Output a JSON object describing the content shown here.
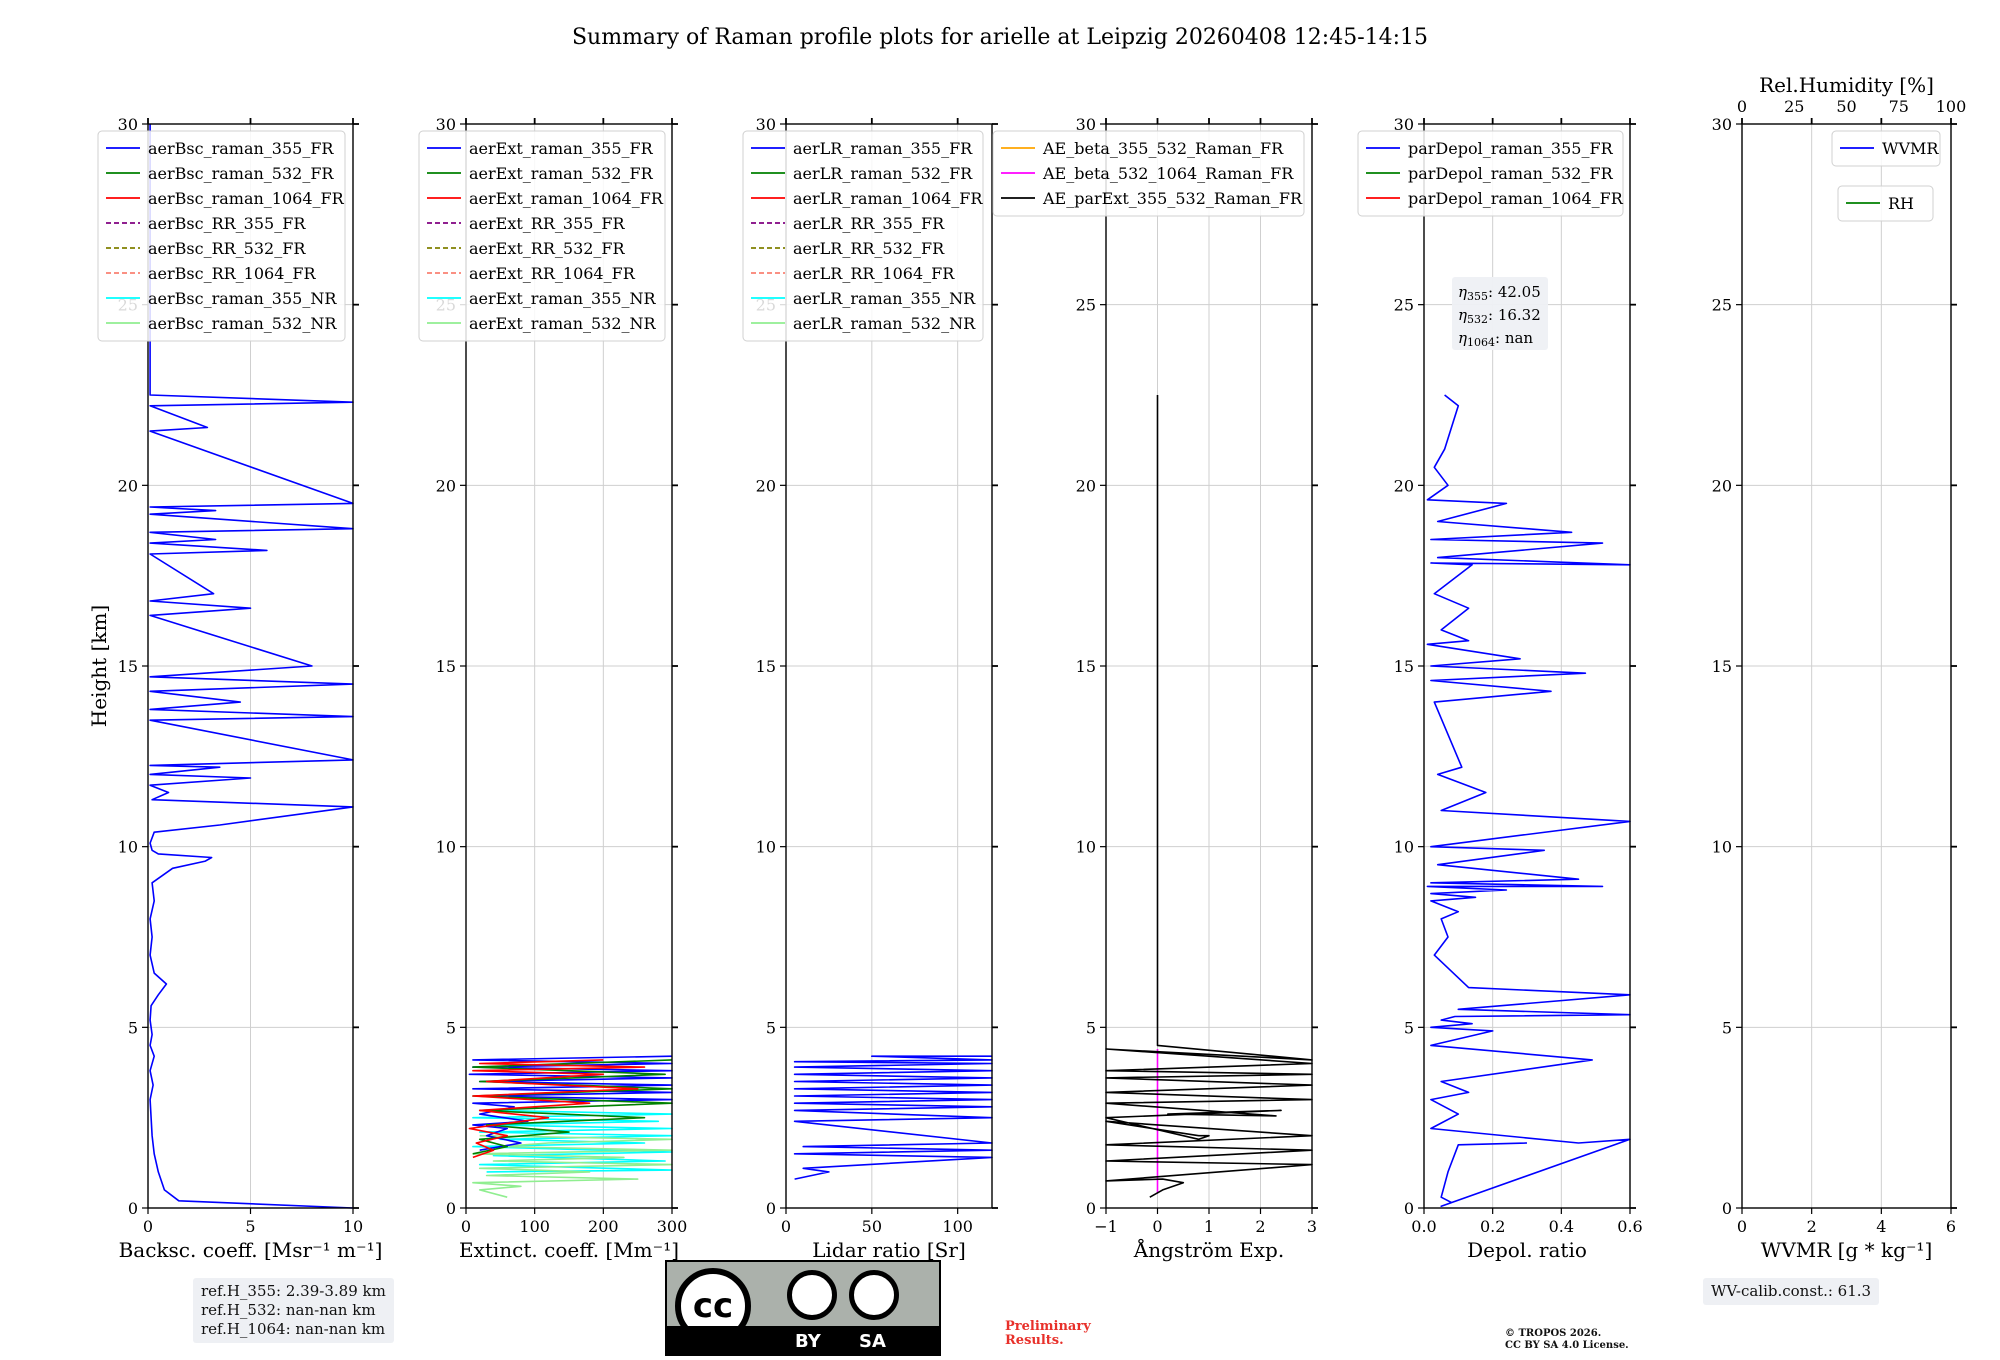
{
  "figure_title": "Summary of Raman profile plots for arielle at Leipzig 20260408 12:45-14:15",
  "colors": {
    "blue": "#0000ff",
    "green": "#008000",
    "red": "#ff0000",
    "purple": "#800080",
    "olive": "#808000",
    "salmon": "#fa8072",
    "cyan": "#00ffff",
    "lightgreen": "#90ee90",
    "orange": "#ffa500",
    "magenta": "#ff00ff",
    "black": "#000000"
  },
  "ref_heights": [
    "ref.H_355: 2.39-3.89 km",
    "ref.H_532: nan-nan km",
    "ref.H_1064: nan-nan km"
  ],
  "wv_calib": "WV-calib.const.: 61.3",
  "preliminary": [
    "Preliminary",
    "Results."
  ],
  "copyright": [
    "© TROPOS 2026.",
    "CC BY SA 4.0 License."
  ],
  "license_badge": {
    "cc": "cc",
    "by": "BY",
    "sa": "SA"
  },
  "chart_data": [
    {
      "type": "line",
      "id": "bsc",
      "ylabel": "Height [km]",
      "xlabel": "Backsc. coeff. [Msr⁻¹ m⁻¹]",
      "xlim": [
        0,
        10
      ],
      "ylim": [
        0,
        30
      ],
      "xticks": [
        0,
        5,
        10
      ],
      "yticks": [
        0,
        5,
        10,
        15,
        20,
        25,
        30
      ],
      "legend": [
        {
          "label": "aerBsc_raman_355_FR",
          "color": "blue",
          "dash": false
        },
        {
          "label": "aerBsc_raman_532_FR",
          "color": "green",
          "dash": false
        },
        {
          "label": "aerBsc_raman_1064_FR",
          "color": "red",
          "dash": false
        },
        {
          "label": "aerBsc_RR_355_FR",
          "color": "purple",
          "dash": true
        },
        {
          "label": "aerBsc_RR_532_FR",
          "color": "olive",
          "dash": true
        },
        {
          "label": "aerBsc_RR_1064_FR",
          "color": "salmon",
          "dash": true
        },
        {
          "label": "aerBsc_raman_355_NR",
          "color": "cyan",
          "dash": false
        },
        {
          "label": "aerBsc_raman_532_NR",
          "color": "lightgreen",
          "dash": false
        }
      ],
      "series": [
        {
          "name": "aerBsc_raman_355_FR",
          "color": "blue",
          "x": [
            10,
            1.5,
            0.8,
            0.5,
            0.3,
            0.2,
            0.15,
            0.1,
            0.25,
            0.1,
            0.3,
            0.1,
            0.2,
            0.1,
            0.15,
            0.5,
            0.9,
            0.3,
            0.1,
            0.2,
            0.1,
            0.3,
            0.2,
            1.2,
            2.8,
            3.1,
            0.5,
            0.2,
            0.1,
            0.3,
            3.5,
            10,
            0.2,
            1.0,
            0.1,
            5.0,
            0.1,
            3.5,
            0.1,
            10,
            0.1,
            10,
            0.1,
            4.5,
            0.1,
            10,
            0.1,
            8.0,
            0.1,
            5.0,
            0.1,
            3.2,
            0.1,
            5.8,
            0.1,
            3.3,
            0.1,
            10,
            0.1,
            3.3,
            0.1,
            10,
            0.1,
            2.9,
            0.1,
            10,
            0.1,
            0.1
          ],
          "y": [
            0.0,
            0.2,
            0.5,
            1.0,
            1.5,
            2.0,
            2.5,
            3.0,
            3.4,
            3.8,
            4.2,
            4.5,
            4.8,
            5.2,
            5.6,
            5.9,
            6.2,
            6.5,
            7.0,
            7.5,
            8.0,
            8.5,
            9.0,
            9.4,
            9.6,
            9.7,
            9.8,
            9.9,
            10.1,
            10.4,
            10.6,
            11.1,
            11.3,
            11.5,
            11.7,
            11.9,
            12.0,
            12.2,
            12.25,
            12.4,
            13.5,
            13.6,
            13.8,
            14.0,
            14.3,
            14.5,
            14.7,
            15.0,
            16.4,
            16.6,
            16.8,
            17.0,
            18.1,
            18.2,
            18.4,
            18.5,
            18.7,
            18.8,
            19.2,
            19.3,
            19.4,
            19.5,
            21.5,
            21.6,
            22.2,
            22.3,
            22.5,
            30
          ]
        }
      ]
    },
    {
      "type": "line",
      "id": "ext",
      "xlabel": "Extinct. coeff. [Mm⁻¹]",
      "xlim": [
        0,
        300
      ],
      "ylim": [
        0,
        30
      ],
      "xticks": [
        0,
        100,
        200,
        300
      ],
      "yticks": [
        0,
        5,
        10,
        15,
        20,
        25,
        30
      ],
      "legend": [
        {
          "label": "aerExt_raman_355_FR",
          "color": "blue",
          "dash": false
        },
        {
          "label": "aerExt_raman_532_FR",
          "color": "green",
          "dash": false
        },
        {
          "label": "aerExt_raman_1064_FR",
          "color": "red",
          "dash": false
        },
        {
          "label": "aerExt_RR_355_FR",
          "color": "purple",
          "dash": true
        },
        {
          "label": "aerExt_RR_532_FR",
          "color": "olive",
          "dash": true
        },
        {
          "label": "aerExt_RR_1064_FR",
          "color": "salmon",
          "dash": true
        },
        {
          "label": "aerExt_raman_355_NR",
          "color": "cyan",
          "dash": false
        },
        {
          "label": "aerExt_raman_532_NR",
          "color": "lightgreen",
          "dash": false
        }
      ],
      "series": [
        {
          "name": "aerExt_raman_355_NR",
          "color": "cyan",
          "x": [
            30,
            300,
            20,
            290,
            40,
            300,
            10,
            260,
            50,
            300,
            20,
            300,
            30,
            280,
            10,
            300,
            40
          ],
          "y": [
            1.0,
            1.05,
            1.2,
            1.3,
            1.45,
            1.55,
            1.7,
            1.8,
            1.9,
            2.0,
            2.1,
            2.2,
            2.3,
            2.4,
            2.5,
            2.6,
            2.7
          ]
        },
        {
          "name": "aerExt_raman_532_NR",
          "color": "lightgreen",
          "x": [
            60,
            20,
            80,
            10,
            250,
            30,
            180,
            20,
            300,
            40,
            230,
            10,
            300,
            50,
            120,
            300,
            20
          ],
          "y": [
            0.3,
            0.5,
            0.6,
            0.7,
            0.8,
            0.9,
            1.0,
            1.1,
            1.2,
            1.3,
            1.4,
            1.5,
            1.6,
            1.7,
            1.8,
            1.9,
            2.0
          ]
        },
        {
          "name": "aerExt_raman_355_FR",
          "color": "blue",
          "x": [
            20,
            80,
            30,
            60,
            10,
            90,
            20,
            70,
            10,
            300,
            15,
            300,
            10,
            300,
            20,
            300,
            5,
            300,
            10,
            300,
            10,
            300
          ],
          "y": [
            1.6,
            1.8,
            2.0,
            2.2,
            2.3,
            2.4,
            2.6,
            2.8,
            2.9,
            3.0,
            3.1,
            3.2,
            3.3,
            3.4,
            3.5,
            3.6,
            3.7,
            3.8,
            3.9,
            4.0,
            4.1,
            4.2
          ]
        },
        {
          "name": "aerExt_raman_532_FR",
          "color": "green",
          "x": [
            10,
            60,
            20,
            150,
            30,
            260,
            20,
            300,
            10,
            300,
            20,
            290,
            10,
            300
          ],
          "y": [
            1.5,
            1.7,
            1.9,
            2.1,
            2.3,
            2.5,
            2.7,
            2.9,
            3.1,
            3.3,
            3.5,
            3.7,
            3.9,
            4.1
          ]
        },
        {
          "name": "aerExt_raman_1064_FR",
          "color": "red",
          "x": [
            10,
            40,
            15,
            60,
            5,
            120,
            20,
            180,
            10,
            250,
            30,
            200,
            10,
            260,
            20,
            200
          ],
          "y": [
            1.4,
            1.6,
            1.8,
            2.0,
            2.2,
            2.5,
            2.7,
            2.9,
            3.1,
            3.3,
            3.5,
            3.7,
            3.8,
            3.9,
            4.0,
            4.1
          ]
        }
      ]
    },
    {
      "type": "line",
      "id": "lr",
      "xlabel": "Lidar ratio [Sr]",
      "xlim": [
        0,
        120
      ],
      "ylim": [
        0,
        30
      ],
      "xticks": [
        0,
        50,
        100
      ],
      "yticks": [
        0,
        5,
        10,
        15,
        20,
        25,
        30
      ],
      "legend": [
        {
          "label": "aerLR_raman_355_FR",
          "color": "blue",
          "dash": false
        },
        {
          "label": "aerLR_raman_532_FR",
          "color": "green",
          "dash": false
        },
        {
          "label": "aerLR_raman_1064_FR",
          "color": "red",
          "dash": false
        },
        {
          "label": "aerLR_RR_355_FR",
          "color": "purple",
          "dash": true
        },
        {
          "label": "aerLR_RR_532_FR",
          "color": "olive",
          "dash": true
        },
        {
          "label": "aerLR_RR_1064_FR",
          "color": "salmon",
          "dash": true
        },
        {
          "label": "aerLR_raman_355_NR",
          "color": "cyan",
          "dash": false
        },
        {
          "label": "aerLR_raman_532_NR",
          "color": "lightgreen",
          "dash": false
        }
      ],
      "series": [
        {
          "name": "aerLR_raman_355_FR",
          "color": "blue",
          "x": [
            5,
            25,
            10,
            120,
            5,
            120,
            10,
            120,
            5,
            120,
            5,
            120,
            5,
            120,
            5,
            120,
            5,
            120,
            5,
            120,
            5,
            120,
            5,
            120,
            5,
            120,
            50,
            120
          ],
          "y": [
            0.8,
            1.0,
            1.1,
            1.4,
            1.5,
            1.6,
            1.7,
            1.8,
            2.4,
            2.5,
            2.7,
            2.8,
            2.9,
            3.0,
            3.1,
            3.2,
            3.3,
            3.4,
            3.5,
            3.6,
            3.7,
            3.8,
            3.9,
            4.0,
            4.05,
            4.1,
            4.2,
            4.2
          ]
        }
      ]
    },
    {
      "type": "line",
      "id": "ae",
      "xlabel": "Ångström Exp.",
      "xlim": [
        -1,
        3
      ],
      "ylim": [
        0,
        30
      ],
      "xticks": [
        -1,
        0,
        1,
        2,
        3
      ],
      "yticks": [
        0,
        5,
        10,
        15,
        20,
        25,
        30
      ],
      "legend": [
        {
          "label": "AE_beta_355_532_Raman_FR",
          "color": "orange",
          "dash": false
        },
        {
          "label": "AE_beta_532_1064_Raman_FR",
          "color": "magenta",
          "dash": false
        },
        {
          "label": "AE_parExt_355_532_Raman_FR",
          "color": "black",
          "dash": false
        }
      ],
      "series": [
        {
          "name": "AE_beta_532_1064_Raman_FR",
          "color": "magenta",
          "x": [
            0,
            0
          ],
          "y": [
            0.4,
            4.4
          ]
        },
        {
          "name": "AE_parExt_355_532_Raman_FR",
          "color": "black",
          "x": [
            -0.15,
            0.1,
            0.5,
            0.1,
            -1,
            3,
            -1,
            3,
            -1,
            3,
            -1,
            0.8,
            1.0,
            0.8,
            -1,
            2.4,
            0.2,
            2.3,
            -1,
            3,
            -1,
            3,
            -1,
            3,
            -1,
            3,
            -1,
            3,
            0,
            0,
            0
          ],
          "y": [
            0.3,
            0.5,
            0.7,
            0.8,
            0.75,
            1.2,
            1.3,
            1.6,
            1.75,
            2.0,
            2.4,
            2.0,
            2.0,
            1.9,
            2.5,
            2.7,
            2.6,
            2.55,
            2.9,
            3.0,
            3.2,
            3.4,
            3.6,
            3.7,
            3.8,
            4.0,
            4.4,
            4.1,
            4.5,
            4.5,
            22.5
          ]
        }
      ]
    },
    {
      "type": "line",
      "id": "depol",
      "xlabel": "Depol. ratio",
      "xlim": [
        0,
        0.6
      ],
      "ylim": [
        0,
        30
      ],
      "xticks": [
        0.0,
        0.2,
        0.4,
        0.6
      ],
      "xtick_labels": [
        "0.0",
        "0.2",
        "0.4",
        "0.6"
      ],
      "yticks": [
        0,
        5,
        10,
        15,
        20,
        25,
        30
      ],
      "legend": [
        {
          "label": "parDepol_raman_355_FR",
          "color": "blue",
          "dash": false
        },
        {
          "label": "parDepol_raman_532_FR",
          "color": "green",
          "dash": false
        },
        {
          "label": "parDepol_raman_1064_FR",
          "color": "red",
          "dash": false
        }
      ],
      "annotation": [
        {
          "sym": "η",
          "sub": "355",
          "val": ": 42.05"
        },
        {
          "sym": "η",
          "sub": "532",
          "val": ": 16.32"
        },
        {
          "sym": "η",
          "sub": "1064",
          "val": ": nan"
        }
      ],
      "series": [
        {
          "name": "parDepol_raman_355_FR",
          "color": "blue",
          "x": [
            0.3,
            0.1,
            0.07,
            0.05,
            0.08,
            0.05,
            0.6,
            0.45,
            0.02,
            0.1,
            0.02,
            0.13,
            0.05,
            0.49,
            0.02,
            0.2,
            0.02,
            0.14,
            0.05,
            0.09,
            0.6,
            0.1,
            0.6,
            0.13,
            0.03,
            0.07,
            0.05,
            0.1,
            0.02,
            0.15,
            0.02,
            0.24,
            0.01,
            0.52,
            0.02,
            0.45,
            0.04,
            0.35,
            0.02,
            0.6,
            0.05,
            0.18,
            0.04,
            0.11,
            0.03,
            0.37,
            0.02,
            0.47,
            0.02,
            0.28,
            0.01,
            0.13,
            0.05,
            0.13,
            0.03,
            0.14,
            0.02,
            0.6,
            0.04,
            0.52,
            0.02,
            0.43,
            0.04,
            0.24,
            0.01,
            0.07,
            0.03,
            0.06,
            0.1,
            0.06
          ],
          "y": [
            1.8,
            1.75,
            1.0,
            0.3,
            0.15,
            0.05,
            1.9,
            1.8,
            2.2,
            2.6,
            3.0,
            3.2,
            3.5,
            4.1,
            4.5,
            4.9,
            5.0,
            5.1,
            5.2,
            5.3,
            5.35,
            5.5,
            5.9,
            6.1,
            7.0,
            7.5,
            8.0,
            8.2,
            8.5,
            8.6,
            8.7,
            8.8,
            8.9,
            8.9,
            9.0,
            9.1,
            9.5,
            9.9,
            10.0,
            10.7,
            11.0,
            11.5,
            12.0,
            12.2,
            14.0,
            14.3,
            14.6,
            14.8,
            15.0,
            15.2,
            15.6,
            15.7,
            16.0,
            16.6,
            17.0,
            17.8,
            17.85,
            17.8,
            18.0,
            18.4,
            18.5,
            18.7,
            19.0,
            19.5,
            19.6,
            20.0,
            20.5,
            21.0,
            22.2,
            22.5
          ]
        }
      ]
    },
    {
      "type": "line",
      "id": "wv",
      "xlabel": "WVMR [g * kg⁻¹]",
      "top_xlabel": "Rel.Humidity [%]",
      "xlim": [
        0,
        6
      ],
      "ylim": [
        0,
        30
      ],
      "xticks": [
        0,
        2,
        4,
        6
      ],
      "yticks": [
        0,
        5,
        10,
        15,
        20,
        25,
        30
      ],
      "top_xlim": [
        0,
        100
      ],
      "top_xticks": [
        0,
        25,
        50,
        75,
        100
      ],
      "legend": [
        {
          "label": "WVMR",
          "color": "blue",
          "dash": false
        }
      ],
      "legend2": [
        {
          "label": "RH",
          "color": "green",
          "dash": false
        }
      ],
      "series": []
    }
  ]
}
